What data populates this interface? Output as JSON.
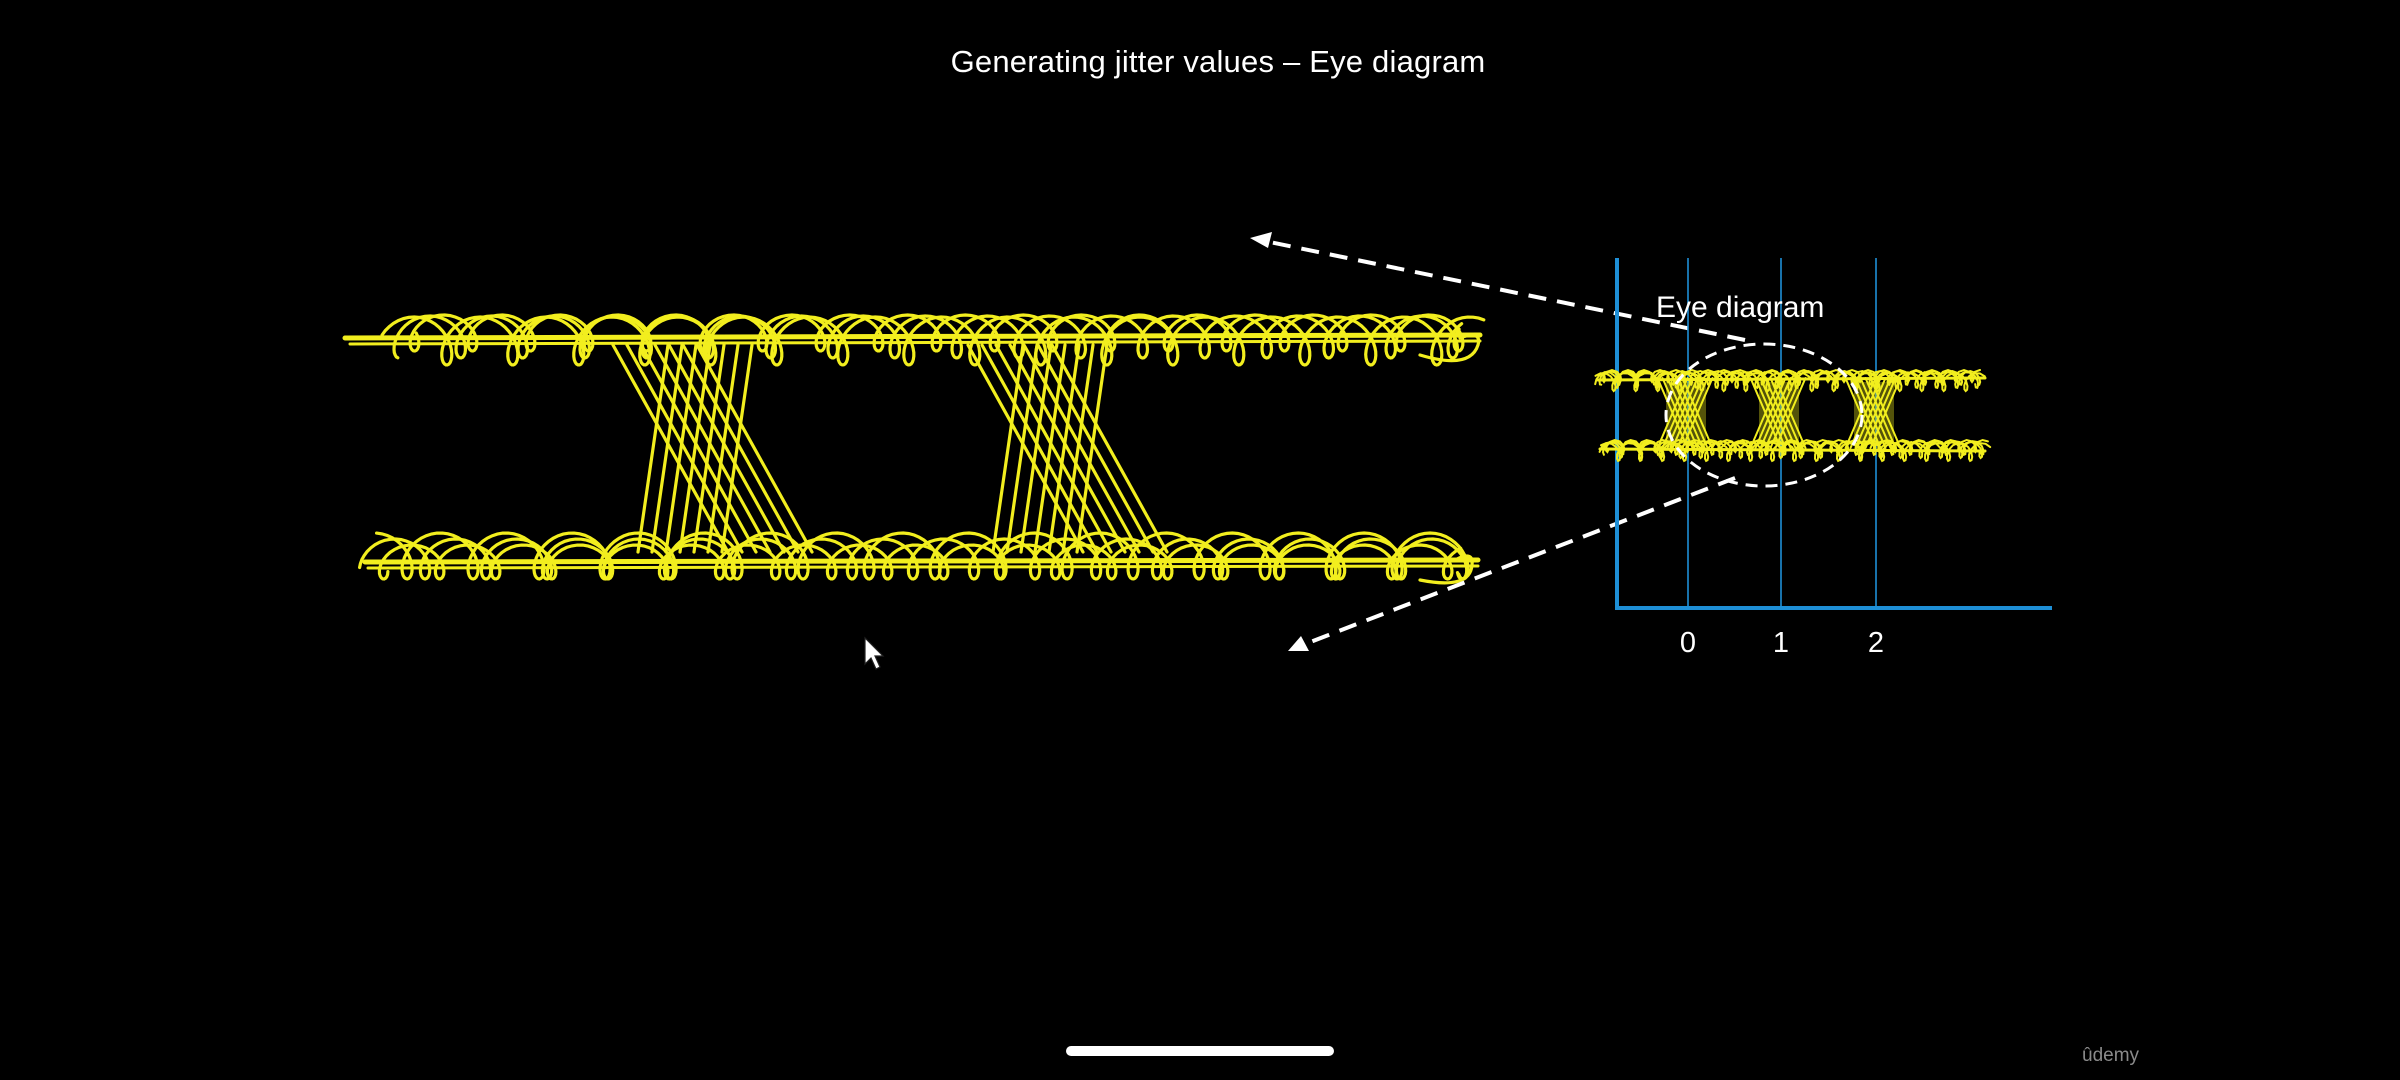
{
  "slide": {
    "title": "Generating jitter values – Eye diagram",
    "eye_label": "Eye diagram",
    "axis_ticks": [
      "0",
      "1",
      "2"
    ],
    "watermark": "ûdemy"
  },
  "colors": {
    "background": "#000000",
    "waveform": "#f2ee1e",
    "axis": "#1e8fd6",
    "arrows": "#ffffff",
    "text": "#ffffff"
  },
  "icons": {
    "pointer": "mouse-pointer-icon"
  }
}
